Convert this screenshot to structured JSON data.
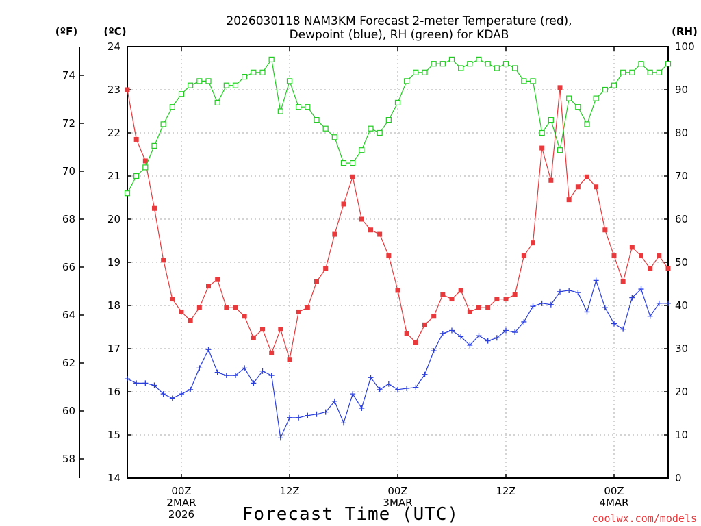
{
  "colors": {
    "temperature": "#e8393c",
    "dewpoint": "#2a3fdc",
    "rh": "#22cc22",
    "credit": "#e8393c",
    "grid": "#aaaaaa"
  },
  "chart_data": {
    "type": "line",
    "title_lines": [
      "2026030118 NAM3KM Forecast 2-meter Temperature (red),",
      "Dewpoint (blue), RH (green) for KDAB"
    ],
    "xlabel": "Forecast Time (UTC)",
    "credit": "coolwx.com/models",
    "x": [
      0,
      1,
      2,
      3,
      4,
      5,
      6,
      7,
      8,
      9,
      10,
      11,
      12,
      13,
      14,
      15,
      16,
      17,
      18,
      19,
      20,
      21,
      22,
      23,
      24,
      25,
      26,
      27,
      28,
      29,
      30,
      31,
      32,
      33,
      34,
      35,
      36,
      37,
      38,
      39,
      40,
      41,
      42,
      43,
      44,
      45,
      46,
      47,
      48,
      49,
      50,
      51,
      52,
      53,
      54,
      55,
      56,
      57,
      58,
      59,
      60
    ],
    "x_range": [
      0,
      60
    ],
    "x_ticks": [
      {
        "x": 6,
        "lines": [
          "00Z",
          "2MAR",
          "2026"
        ]
      },
      {
        "x": 18,
        "lines": [
          "12Z"
        ]
      },
      {
        "x": 30,
        "lines": [
          "00Z",
          "3MAR"
        ]
      },
      {
        "x": 42,
        "lines": [
          "12Z"
        ]
      },
      {
        "x": 54,
        "lines": [
          "00Z",
          "4MAR"
        ]
      }
    ],
    "axes": {
      "fahrenheit": {
        "unit_label": "(ºF)",
        "ticks": [
          58,
          60,
          62,
          64,
          66,
          68,
          70,
          72,
          74
        ]
      },
      "celsius": {
        "unit_label": "(ºC)",
        "range": [
          14,
          24
        ],
        "ticks": [
          14,
          15,
          16,
          17,
          18,
          19,
          20,
          21,
          22,
          23,
          24
        ]
      },
      "rh": {
        "unit_label": "(RH)",
        "range": [
          0,
          100
        ],
        "ticks": [
          0,
          10,
          20,
          30,
          40,
          50,
          60,
          70,
          80,
          90,
          100
        ]
      }
    },
    "grid": true,
    "series": [
      {
        "key": "temperature",
        "axis": "celsius",
        "marker": "filled-square",
        "values": [
          23.0,
          21.85,
          21.35,
          20.25,
          19.05,
          18.15,
          17.85,
          17.65,
          17.95,
          18.45,
          18.6,
          17.95,
          17.95,
          17.75,
          17.25,
          17.45,
          16.9,
          17.45,
          16.75,
          17.85,
          17.95,
          18.55,
          18.85,
          19.65,
          20.35,
          20.98,
          20.0,
          19.75,
          19.65,
          19.15,
          18.35,
          17.35,
          17.15,
          17.55,
          17.75,
          18.25,
          18.15,
          18.35,
          17.85,
          17.95,
          17.95,
          18.15,
          18.15,
          18.25,
          19.15,
          19.45,
          21.65,
          20.9,
          23.05,
          20.45,
          20.75,
          20.98,
          20.75,
          19.75,
          19.15,
          18.55,
          19.35,
          19.15,
          18.85,
          19.15,
          18.85
        ]
      },
      {
        "key": "dewpoint",
        "axis": "celsius",
        "marker": "plus",
        "values": [
          16.3,
          16.2,
          16.2,
          16.15,
          15.95,
          15.85,
          15.95,
          16.05,
          16.55,
          16.98,
          16.45,
          16.38,
          16.38,
          16.55,
          16.2,
          16.48,
          16.38,
          14.93,
          15.4,
          15.4,
          15.45,
          15.48,
          15.53,
          15.78,
          15.28,
          15.95,
          15.62,
          16.33,
          16.05,
          16.18,
          16.05,
          16.08,
          16.1,
          16.4,
          16.95,
          17.35,
          17.42,
          17.28,
          17.08,
          17.3,
          17.18,
          17.25,
          17.42,
          17.38,
          17.62,
          17.98,
          18.05,
          18.02,
          18.32,
          18.35,
          18.3,
          17.85,
          18.58,
          17.95,
          17.58,
          17.45,
          18.18,
          18.38,
          17.75,
          18.05,
          18.05
        ]
      },
      {
        "key": "rh",
        "axis": "rh",
        "marker": "open-square",
        "values": [
          66,
          70,
          72,
          77,
          82,
          86,
          89,
          91,
          92,
          92,
          87,
          91,
          91,
          93,
          94,
          94,
          97,
          85,
          92,
          86,
          86,
          83,
          81,
          79,
          73,
          73,
          76,
          81,
          80,
          83,
          87,
          92,
          94,
          94,
          96,
          96,
          97,
          95,
          96,
          97,
          96,
          95,
          96,
          95,
          92,
          92,
          80,
          83,
          76,
          88,
          86,
          82,
          88,
          90,
          91,
          94,
          94,
          96,
          94,
          94,
          96
        ]
      }
    ]
  }
}
